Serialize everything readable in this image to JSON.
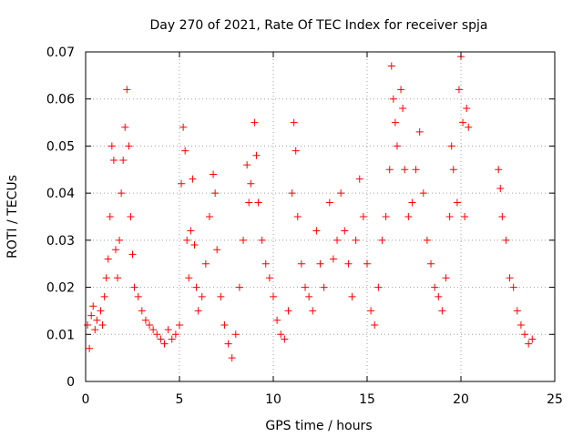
{
  "chart_data": {
    "type": "scatter",
    "title": "Day 270 of 2021, Rate Of TEC Index for receiver spja",
    "xlabel": "GPS time / hours",
    "ylabel": "ROTI / TECUs",
    "xlim": [
      0,
      25
    ],
    "ylim": [
      0,
      0.07
    ],
    "x_ticks": [
      "0",
      "5",
      "10",
      "15",
      "20",
      "25"
    ],
    "y_ticks": [
      "0",
      "0.01",
      "0.02",
      "0.03",
      "0.04",
      "0.05",
      "0.06",
      "0.07"
    ],
    "grid": true,
    "marker": "+",
    "color": "#ff0000",
    "series": [
      {
        "name": "ROTI",
        "points": [
          [
            0.1,
            0.012
          ],
          [
            0.2,
            0.007
          ],
          [
            0.3,
            0.014
          ],
          [
            0.4,
            0.016
          ],
          [
            0.5,
            0.011
          ],
          [
            0.6,
            0.013
          ],
          [
            0.8,
            0.015
          ],
          [
            0.9,
            0.012
          ],
          [
            1.0,
            0.018
          ],
          [
            1.1,
            0.022
          ],
          [
            1.2,
            0.026
          ],
          [
            1.3,
            0.035
          ],
          [
            1.4,
            0.05
          ],
          [
            1.5,
            0.047
          ],
          [
            1.6,
            0.028
          ],
          [
            1.7,
            0.022
          ],
          [
            1.8,
            0.03
          ],
          [
            1.9,
            0.04
          ],
          [
            2.0,
            0.047
          ],
          [
            2.1,
            0.054
          ],
          [
            2.2,
            0.062
          ],
          [
            2.3,
            0.05
          ],
          [
            2.4,
            0.035
          ],
          [
            2.5,
            0.027
          ],
          [
            2.6,
            0.02
          ],
          [
            2.8,
            0.018
          ],
          [
            3.0,
            0.015
          ],
          [
            3.2,
            0.013
          ],
          [
            3.4,
            0.012
          ],
          [
            3.6,
            0.011
          ],
          [
            3.8,
            0.01
          ],
          [
            4.0,
            0.009
          ],
          [
            4.2,
            0.008
          ],
          [
            4.4,
            0.011
          ],
          [
            4.6,
            0.009
          ],
          [
            4.8,
            0.01
          ],
          [
            5.0,
            0.012
          ],
          [
            5.1,
            0.042
          ],
          [
            5.2,
            0.054
          ],
          [
            5.3,
            0.049
          ],
          [
            5.4,
            0.03
          ],
          [
            5.5,
            0.022
          ],
          [
            5.6,
            0.032
          ],
          [
            5.7,
            0.043
          ],
          [
            5.8,
            0.029
          ],
          [
            5.9,
            0.02
          ],
          [
            6.0,
            0.015
          ],
          [
            6.2,
            0.018
          ],
          [
            6.4,
            0.025
          ],
          [
            6.6,
            0.035
          ],
          [
            6.8,
            0.044
          ],
          [
            6.9,
            0.04
          ],
          [
            7.0,
            0.028
          ],
          [
            7.2,
            0.018
          ],
          [
            7.4,
            0.012
          ],
          [
            7.6,
            0.008
          ],
          [
            7.8,
            0.005
          ],
          [
            8.0,
            0.01
          ],
          [
            8.2,
            0.02
          ],
          [
            8.4,
            0.03
          ],
          [
            8.6,
            0.046
          ],
          [
            8.7,
            0.038
          ],
          [
            8.8,
            0.042
          ],
          [
            9.0,
            0.055
          ],
          [
            9.1,
            0.048
          ],
          [
            9.2,
            0.038
          ],
          [
            9.4,
            0.03
          ],
          [
            9.6,
            0.025
          ],
          [
            9.8,
            0.022
          ],
          [
            10.0,
            0.018
          ],
          [
            10.2,
            0.013
          ],
          [
            10.4,
            0.01
          ],
          [
            10.6,
            0.009
          ],
          [
            10.8,
            0.015
          ],
          [
            11.0,
            0.04
          ],
          [
            11.1,
            0.055
          ],
          [
            11.2,
            0.049
          ],
          [
            11.3,
            0.035
          ],
          [
            11.5,
            0.025
          ],
          [
            11.7,
            0.02
          ],
          [
            11.9,
            0.018
          ],
          [
            12.1,
            0.015
          ],
          [
            12.3,
            0.032
          ],
          [
            12.5,
            0.025
          ],
          [
            12.7,
            0.02
          ],
          [
            13.0,
            0.038
          ],
          [
            13.2,
            0.026
          ],
          [
            13.4,
            0.03
          ],
          [
            13.6,
            0.04
          ],
          [
            13.8,
            0.032
          ],
          [
            14.0,
            0.025
          ],
          [
            14.2,
            0.018
          ],
          [
            14.4,
            0.03
          ],
          [
            14.6,
            0.043
          ],
          [
            14.8,
            0.035
          ],
          [
            15.0,
            0.025
          ],
          [
            15.2,
            0.015
          ],
          [
            15.4,
            0.012
          ],
          [
            15.6,
            0.02
          ],
          [
            15.8,
            0.03
          ],
          [
            16.0,
            0.035
          ],
          [
            16.2,
            0.045
          ],
          [
            16.3,
            0.067
          ],
          [
            16.4,
            0.06
          ],
          [
            16.5,
            0.055
          ],
          [
            16.6,
            0.05
          ],
          [
            16.8,
            0.062
          ],
          [
            16.9,
            0.058
          ],
          [
            17.0,
            0.045
          ],
          [
            17.2,
            0.035
          ],
          [
            17.4,
            0.038
          ],
          [
            17.6,
            0.045
          ],
          [
            17.8,
            0.053
          ],
          [
            18.0,
            0.04
          ],
          [
            18.2,
            0.03
          ],
          [
            18.4,
            0.025
          ],
          [
            18.6,
            0.02
          ],
          [
            18.8,
            0.018
          ],
          [
            19.0,
            0.015
          ],
          [
            19.2,
            0.022
          ],
          [
            19.4,
            0.035
          ],
          [
            19.5,
            0.05
          ],
          [
            19.6,
            0.045
          ],
          [
            19.8,
            0.038
          ],
          [
            19.9,
            0.062
          ],
          [
            20.0,
            0.069
          ],
          [
            20.1,
            0.055
          ],
          [
            20.2,
            0.035
          ],
          [
            20.3,
            0.058
          ],
          [
            20.4,
            0.054
          ],
          [
            22.0,
            0.045
          ],
          [
            22.1,
            0.041
          ],
          [
            22.2,
            0.035
          ],
          [
            22.4,
            0.03
          ],
          [
            22.6,
            0.022
          ],
          [
            22.8,
            0.02
          ],
          [
            23.0,
            0.015
          ],
          [
            23.2,
            0.012
          ],
          [
            23.4,
            0.01
          ],
          [
            23.6,
            0.008
          ],
          [
            23.8,
            0.009
          ]
        ]
      }
    ]
  }
}
